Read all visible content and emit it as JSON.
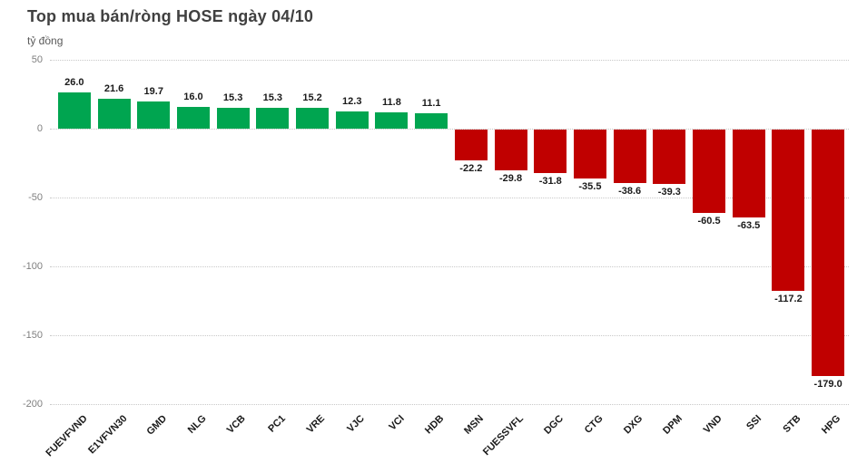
{
  "header": {
    "title": "Top mua bán/ròng HOSE ngày 04/10",
    "unit_label": "tỷ đồng"
  },
  "chart_data": {
    "type": "bar",
    "title": "Top mua bán/ròng HOSE ngày 04/10",
    "ylabel": "tỷ đồng",
    "xlabel": "",
    "categories": [
      "FUEVFVND",
      "E1VFVN30",
      "GMD",
      "NLG",
      "VCB",
      "PC1",
      "VRE",
      "VJC",
      "VCI",
      "HDB",
      "MSN",
      "FUESSVFL",
      "DGC",
      "CTG",
      "DXG",
      "DPM",
      "VND",
      "SSI",
      "STB",
      "HPG"
    ],
    "values": [
      26.0,
      21.6,
      19.7,
      16.0,
      15.3,
      15.3,
      15.2,
      12.3,
      11.8,
      11.1,
      -22.2,
      -29.8,
      -31.8,
      -35.5,
      -38.6,
      -39.3,
      -60.5,
      -63.5,
      -117.2,
      -179.0
    ],
    "ylim": [
      -200,
      50
    ],
    "yticks": [
      50,
      0,
      -50,
      -100,
      -150,
      -200
    ],
    "grid": true,
    "legend": false,
    "positive_color": "#00A550",
    "negative_color": "#C00000",
    "gridline_color": "#c9c9c9",
    "title_color": "#404040",
    "axis_label_color": "#7f7f7f",
    "data_label_color": "#1a1a1a"
  }
}
